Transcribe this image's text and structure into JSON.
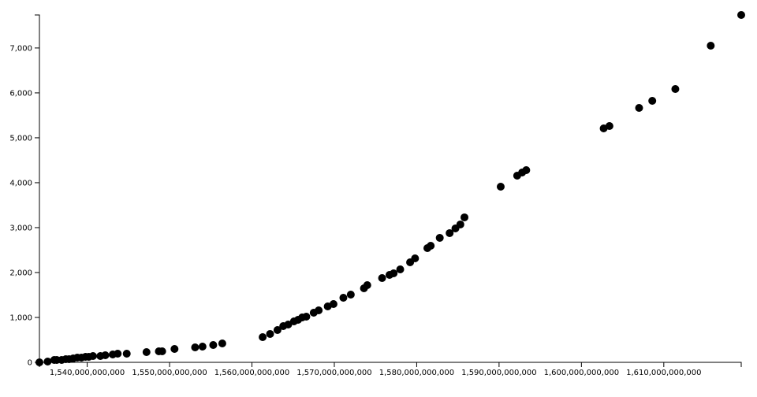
{
  "chart_data": {
    "type": "scatter",
    "title": "",
    "xlabel": "",
    "ylabel": "",
    "xlim": [
      1534200000000,
      1619400000000
    ],
    "ylim": [
      0,
      7735
    ],
    "grid": false,
    "marker_color": "#000000",
    "x_ticks": [
      {
        "value": 1540000000000,
        "label": "1,540,000,000,000"
      },
      {
        "value": 1550000000000,
        "label": "1,550,000,000,000"
      },
      {
        "value": 1560000000000,
        "label": "1,560,000,000,000"
      },
      {
        "value": 1570000000000,
        "label": "1,570,000,000,000"
      },
      {
        "value": 1580000000000,
        "label": "1,580,000,000,000"
      },
      {
        "value": 1590000000000,
        "label": "1,590,000,000,000"
      },
      {
        "value": 1600000000000,
        "label": "1,600,000,000,000"
      },
      {
        "value": 1610000000000,
        "label": "1,610,000,000,000"
      }
    ],
    "y_ticks": [
      {
        "value": 0,
        "label": "0"
      },
      {
        "value": 1000,
        "label": "1,000"
      },
      {
        "value": 2000,
        "label": "2,000"
      },
      {
        "value": 3000,
        "label": "3,000"
      },
      {
        "value": 4000,
        "label": "4,000"
      },
      {
        "value": 5000,
        "label": "5,000"
      },
      {
        "value": 6000,
        "label": "6,000"
      },
      {
        "value": 7000,
        "label": "7,000"
      }
    ],
    "points": [
      [
        1534200000000.0,
        0
      ],
      [
        1535200000000.0,
        18
      ],
      [
        1536000000000.0,
        53
      ],
      [
        1536300000000.0,
        53
      ],
      [
        1536900000000.0,
        53
      ],
      [
        1537400000000.0,
        70
      ],
      [
        1537800000000.0,
        70
      ],
      [
        1538300000000.0,
        88
      ],
      [
        1538800000000.0,
        105
      ],
      [
        1539300000000.0,
        105
      ],
      [
        1539800000000.0,
        123
      ],
      [
        1540200000000.0,
        123
      ],
      [
        1540700000000.0,
        140
      ],
      [
        1541600000000.0,
        140
      ],
      [
        1542200000000.0,
        158
      ],
      [
        1543100000000.0,
        175
      ],
      [
        1543700000000.0,
        193
      ],
      [
        1544800000000.0,
        193
      ],
      [
        1547200000000.0,
        228
      ],
      [
        1548700000000.0,
        246
      ],
      [
        1549100000000.0,
        246
      ],
      [
        1550600000000.0,
        298
      ],
      [
        1553100000000.0,
        333
      ],
      [
        1554000000000.0,
        351
      ],
      [
        1555300000000.0,
        386
      ],
      [
        1556400000000.0,
        421
      ],
      [
        1561300000000.0,
        561
      ],
      [
        1562200000000.0,
        632
      ],
      [
        1563100000000.0,
        719
      ],
      [
        1563800000000.0,
        807
      ],
      [
        1564400000000.0,
        842
      ],
      [
        1565100000000.0,
        912
      ],
      [
        1565600000000.0,
        947
      ],
      [
        1566100000000.0,
        1000
      ],
      [
        1566600000000.0,
        1017
      ],
      [
        1567500000000.0,
        1105
      ],
      [
        1568100000000.0,
        1158
      ],
      [
        1569200000000.0,
        1245
      ],
      [
        1569900000000.0,
        1298
      ],
      [
        1571100000000.0,
        1438
      ],
      [
        1572000000000.0,
        1508
      ],
      [
        1573600000000.0,
        1649
      ],
      [
        1574000000000.0,
        1719
      ],
      [
        1575800000000.0,
        1877
      ],
      [
        1576700000000.0,
        1947
      ],
      [
        1577200000000.0,
        1982
      ],
      [
        1578000000000.0,
        2070
      ],
      [
        1579200000000.0,
        2228
      ],
      [
        1579800000000.0,
        2315
      ],
      [
        1581300000000.0,
        2543
      ],
      [
        1581700000000.0,
        2596
      ],
      [
        1582800000000.0,
        2772
      ],
      [
        1584000000000.0,
        2877
      ],
      [
        1584700000000.0,
        2982
      ],
      [
        1585300000000.0,
        3070
      ],
      [
        1585800000000.0,
        3228
      ],
      [
        1590200000000.0,
        3911
      ],
      [
        1592200000000.0,
        4157
      ],
      [
        1592800000000.0,
        4227
      ],
      [
        1593300000000.0,
        4280
      ],
      [
        1602700000000.0,
        5209
      ],
      [
        1603400000000.0,
        5262
      ],
      [
        1607000000000.0,
        5665
      ],
      [
        1608600000000.0,
        5823
      ],
      [
        1611400000000.0,
        6086
      ],
      [
        1615700000000.0,
        7051
      ],
      [
        1619400000000.0,
        7735
      ]
    ]
  }
}
